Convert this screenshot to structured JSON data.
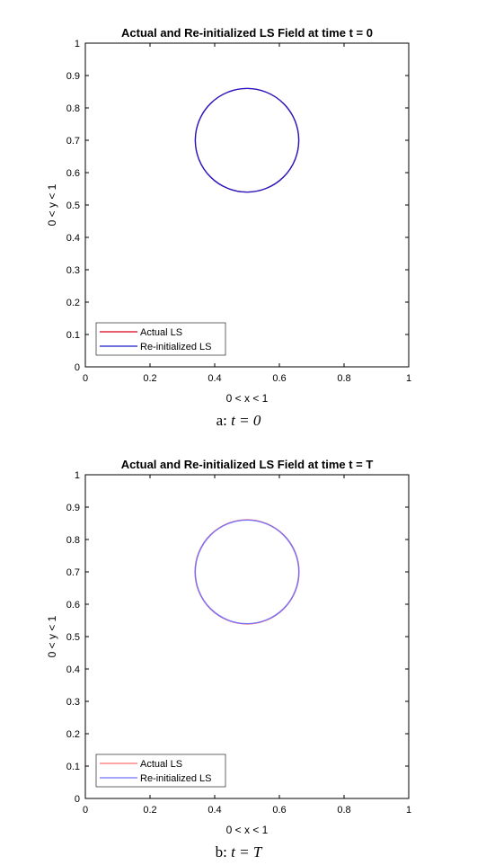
{
  "charts": [
    {
      "caption_prefix": "a:",
      "caption_math": "t = 0",
      "chart_data": {
        "type": "line",
        "title": "Actual and Re-initialized LS Field at time t = 0",
        "xlabel": "0 < x < 1",
        "ylabel": "0 < y < 1",
        "xlim": [
          0,
          1
        ],
        "ylim": [
          0,
          1
        ],
        "xticks": [
          "0",
          "0.2",
          "0.4",
          "0.6",
          "0.8",
          "1"
        ],
        "yticks": [
          "0",
          "0.1",
          "0.2",
          "0.3",
          "0.4",
          "0.5",
          "0.6",
          "0.7",
          "0.8",
          "0.9",
          "1"
        ],
        "grid": false,
        "legend_position": "bottom-left",
        "series": [
          {
            "name": "Actual LS",
            "color": "#d9001b",
            "shape": "circle",
            "center": [
              0.5,
              0.7
            ],
            "radius": 0.16
          },
          {
            "name": "Re-initialized LS",
            "color": "#1a1acc",
            "shape": "circle",
            "center": [
              0.5,
              0.7
            ],
            "radius": 0.16
          }
        ]
      }
    },
    {
      "caption_prefix": "b:",
      "caption_math": "t = T",
      "chart_data": {
        "type": "line",
        "title": "Actual and Re-initialized LS Field at time t = T",
        "xlabel": "0 < x < 1",
        "ylabel": "0 < y < 1",
        "xlim": [
          0,
          1
        ],
        "ylim": [
          0,
          1
        ],
        "xticks": [
          "0",
          "0.2",
          "0.4",
          "0.6",
          "0.8",
          "1"
        ],
        "yticks": [
          "0",
          "0.1",
          "0.2",
          "0.3",
          "0.4",
          "0.5",
          "0.6",
          "0.7",
          "0.8",
          "0.9",
          "1"
        ],
        "grid": false,
        "legend_position": "bottom-left",
        "series": [
          {
            "name": "Actual LS",
            "color": "#ff6f6f",
            "shape": "circle",
            "center": [
              0.5,
              0.7
            ],
            "radius": 0.161
          },
          {
            "name": "Re-initialized LS",
            "color": "#7070ff",
            "shape": "circle",
            "center": [
              0.5,
              0.7
            ],
            "radius": 0.16
          }
        ]
      }
    }
  ]
}
